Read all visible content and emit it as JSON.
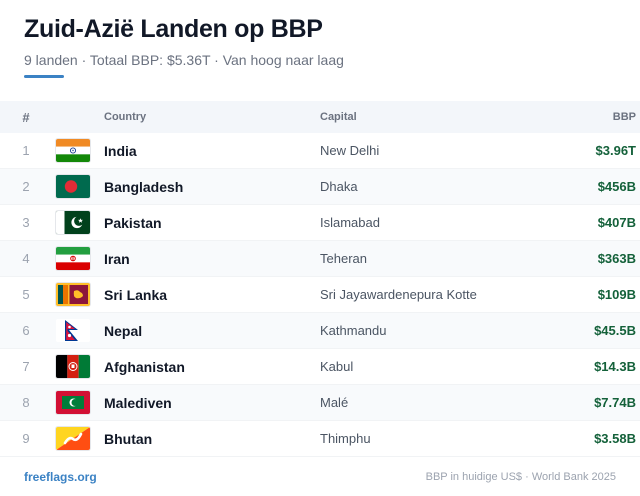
{
  "header": {
    "title": "Zuid-Azië Landen op BBP",
    "subtitle": "9 landen · Totaal BBP: $5.36T · Van hoog naar laag"
  },
  "table": {
    "columns": {
      "num": "#",
      "country": "Country",
      "capital": "Capital",
      "gdp": "BBP"
    },
    "rows": [
      {
        "rank": "1",
        "country": "India",
        "capital": "New Delhi",
        "gdp": "$3.96T",
        "flag_icon": "india-flag-icon"
      },
      {
        "rank": "2",
        "country": "Bangladesh",
        "capital": "Dhaka",
        "gdp": "$456B",
        "flag_icon": "bangladesh-flag-icon"
      },
      {
        "rank": "3",
        "country": "Pakistan",
        "capital": "Islamabad",
        "gdp": "$407B",
        "flag_icon": "pakistan-flag-icon"
      },
      {
        "rank": "4",
        "country": "Iran",
        "capital": "Teheran",
        "gdp": "$363B",
        "flag_icon": "iran-flag-icon"
      },
      {
        "rank": "5",
        "country": "Sri Lanka",
        "capital": "Sri Jayawardenepura Kotte",
        "gdp": "$109B",
        "flag_icon": "sri-lanka-flag-icon"
      },
      {
        "rank": "6",
        "country": "Nepal",
        "capital": "Kathmandu",
        "gdp": "$45.5B",
        "flag_icon": "nepal-flag-icon"
      },
      {
        "rank": "7",
        "country": "Afghanistan",
        "capital": "Kabul",
        "gdp": "$14.3B",
        "flag_icon": "afghanistan-flag-icon"
      },
      {
        "rank": "8",
        "country": "Malediven",
        "capital": "Malé",
        "gdp": "$7.74B",
        "flag_icon": "maldives-flag-icon"
      },
      {
        "rank": "9",
        "country": "Bhutan",
        "capital": "Thimphu",
        "gdp": "$3.58B",
        "flag_icon": "bhutan-flag-icon"
      }
    ]
  },
  "footer": {
    "link": "freeflags.org",
    "source": "BBP in huidige US$ · World Bank 2025"
  },
  "colors": {
    "accent": "#3b82c4",
    "gdp_value": "#14613a",
    "row_alt": "#f8fafc"
  }
}
